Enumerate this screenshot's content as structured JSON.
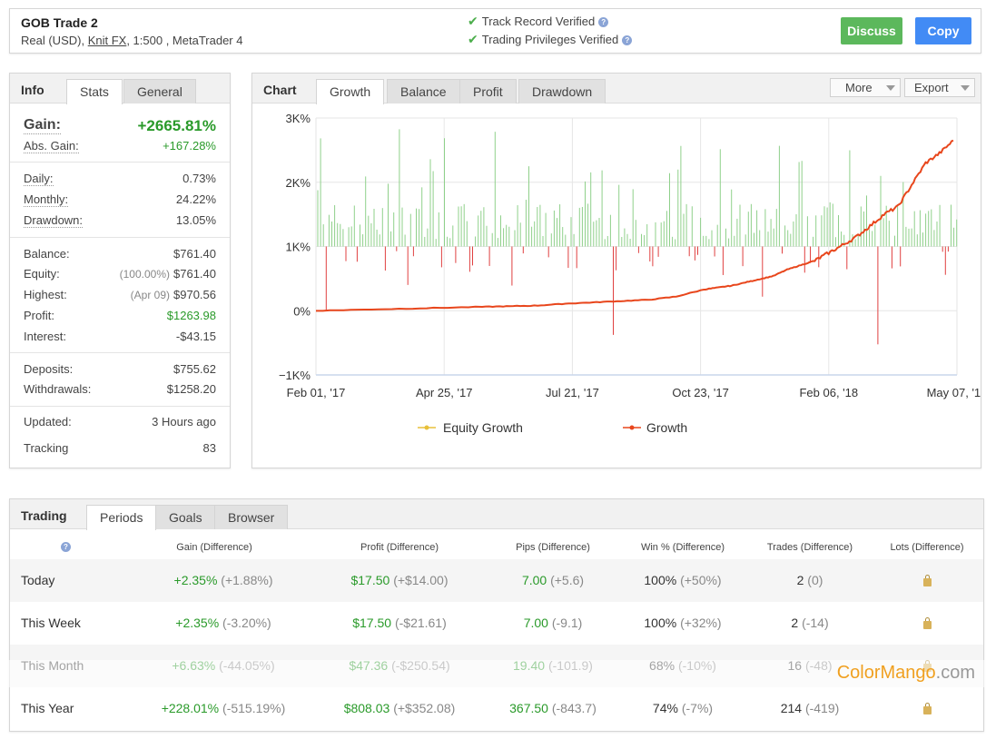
{
  "header": {
    "title": "GOB Trade 2",
    "sub_prefix": "Real (USD),",
    "broker": "Knit FX",
    "sub_suffix": ", 1:500 , MetaTrader 4",
    "track_record": "Track Record Verified",
    "trading_privileges": "Trading Privileges Verified",
    "discuss": "Discuss",
    "copy": "Copy"
  },
  "info": {
    "title": "Info",
    "tabs": [
      "Stats",
      "General"
    ],
    "gain_label": "Gain:",
    "gain_value": "+2665.81%",
    "abs_gain_label": "Abs. Gain:",
    "abs_gain_value": "+167.28%",
    "daily_label": "Daily:",
    "daily_value": "0.73%",
    "monthly_label": "Monthly:",
    "monthly_value": "24.22%",
    "drawdown_label": "Drawdown:",
    "drawdown_value": "13.05%",
    "balance_label": "Balance:",
    "balance_value": "$761.40",
    "equity_label": "Equity:",
    "equity_pct": "(100.00%)",
    "equity_value": "$761.40",
    "highest_label": "Highest:",
    "highest_date": "(Apr 09)",
    "highest_value": "$970.56",
    "profit_label": "Profit:",
    "profit_value": "$1263.98",
    "interest_label": "Interest:",
    "interest_value": "-$43.15",
    "deposits_label": "Deposits:",
    "deposits_value": "$755.62",
    "withdrawals_label": "Withdrawals:",
    "withdrawals_value": "$1258.20",
    "updated_label": "Updated:",
    "updated_value": "3 Hours ago",
    "tracking_label": "Tracking",
    "tracking_value": "83"
  },
  "chart_panel": {
    "title": "Chart",
    "tabs": [
      "Growth",
      "Balance",
      "Profit",
      "Drawdown"
    ],
    "more": "More",
    "export": "Export"
  },
  "chart_data": {
    "type": "line",
    "y_ticks": [
      "3K%",
      "2K%",
      "1K%",
      "0%",
      "−1K%"
    ],
    "ylim": [
      -1000,
      3000
    ],
    "x_ticks": [
      "Feb 01, '17",
      "Apr 25, '17",
      "Jul 21, '17",
      "Oct 23, '17",
      "Feb 06, '18",
      "May 07, '18"
    ],
    "series": [
      {
        "name": "Equity Growth",
        "color": "#e8c03a"
      },
      {
        "name": "Growth",
        "color": "#e8461c",
        "x": [
          0,
          20,
          40,
          60,
          70,
          80,
          90,
          100,
          110,
          120,
          130,
          140,
          145,
          150,
          155,
          160,
          165,
          170,
          175,
          180,
          185,
          190,
          195,
          200,
          205,
          210,
          215,
          220,
          225,
          230
        ],
        "values": [
          0,
          20,
          40,
          60,
          70,
          80,
          110,
          130,
          150,
          170,
          220,
          330,
          360,
          390,
          440,
          490,
          540,
          640,
          710,
          780,
          900,
          1020,
          1150,
          1320,
          1500,
          1620,
          1960,
          2300,
          2450,
          2650
        ]
      }
    ],
    "bars_color_pos": "#8fd08a",
    "bars_color_neg": "#e04040",
    "legend_position": "bottom"
  },
  "trading": {
    "title": "Trading",
    "tabs": [
      "Periods",
      "Goals",
      "Browser"
    ],
    "columns": [
      "Gain (Difference)",
      "Profit (Difference)",
      "Pips (Difference)",
      "Win % (Difference)",
      "Trades (Difference)",
      "Lots (Difference)"
    ],
    "rows": [
      {
        "name": "Today",
        "gain": "+2.35%",
        "gain_diff": "(+1.88%)",
        "profit": "$17.50",
        "profit_diff": "(+$14.00)",
        "pips": "7.00",
        "pips_diff": "(+5.6)",
        "win": "100%",
        "win_diff": "(+50%)",
        "trades": "2",
        "trades_diff": "(0)"
      },
      {
        "name": "This Week",
        "gain": "+2.35%",
        "gain_diff": "(-3.20%)",
        "profit": "$17.50",
        "profit_diff": "(-$21.61)",
        "pips": "7.00",
        "pips_diff": "(-9.1)",
        "win": "100%",
        "win_diff": "(+32%)",
        "trades": "2",
        "trades_diff": "(-14)"
      },
      {
        "name": "This Month",
        "gain": "+6.63%",
        "gain_diff": "(-44.05%)",
        "profit": "$47.36",
        "profit_diff": "(-$250.54)",
        "pips": "19.40",
        "pips_diff": "(-101.9)",
        "win": "68%",
        "win_diff": "(-10%)",
        "trades": "16",
        "trades_diff": "(-48)"
      },
      {
        "name": "This Year",
        "gain": "+228.01%",
        "gain_diff": "(-515.19%)",
        "profit": "$808.03",
        "profit_diff": "(+$352.08)",
        "pips": "367.50",
        "pips_diff": "(-843.7)",
        "win": "74%",
        "win_diff": "(-7%)",
        "trades": "214",
        "trades_diff": "(-419)"
      }
    ]
  },
  "watermark": {
    "brand": "ColorMango",
    "tld": ".com"
  }
}
